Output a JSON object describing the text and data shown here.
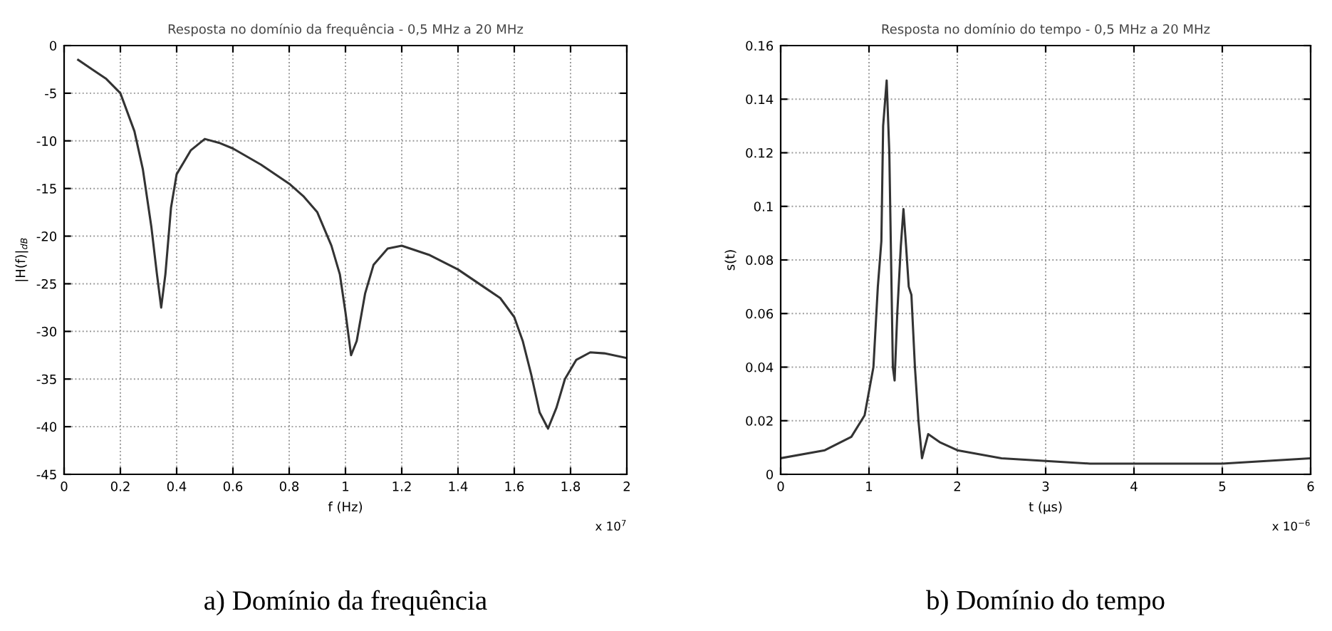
{
  "chart_data": [
    {
      "type": "line",
      "title": "Resposta no domínio da frequência - 0,5 MHz a 20 MHz",
      "xlabel": "f (Hz)",
      "ylabel": "|H(f)|$_{dB}$",
      "x": [
        0.05,
        0.1,
        0.15,
        0.2,
        0.25,
        0.28,
        0.31,
        0.33,
        0.345,
        0.36,
        0.38,
        0.4,
        0.45,
        0.5,
        0.55,
        0.6,
        0.7,
        0.8,
        0.85,
        0.9,
        0.95,
        0.98,
        1.0,
        1.02,
        1.04,
        1.07,
        1.1,
        1.15,
        1.2,
        1.3,
        1.4,
        1.5,
        1.55,
        1.6,
        1.63,
        1.66,
        1.69,
        1.72,
        1.75,
        1.78,
        1.82,
        1.87,
        1.92,
        2.0
      ],
      "series": [
        {
          "color": "#333333",
          "values": [
            -1.5,
            -2.5,
            -3.5,
            -5,
            -9,
            -13,
            -19,
            -24,
            -27.5,
            -24,
            -17,
            -13.5,
            -11,
            -9.8,
            -10.2,
            -10.8,
            -12.5,
            -14.5,
            -15.8,
            -17.5,
            -21,
            -24,
            -28,
            -32.5,
            -31,
            -26,
            -23,
            -21.3,
            -21,
            -22,
            -23.5,
            -25.5,
            -26.5,
            -28.5,
            -31,
            -34.5,
            -38.5,
            -40.2,
            -38,
            -35,
            -33,
            -32.2,
            -32.3,
            -32.8
          ]
        }
      ],
      "xlim": [
        0,
        2
      ],
      "xticks": [
        0,
        0.2,
        0.4,
        0.6,
        0.8,
        1,
        1.2,
        1.4,
        1.6,
        1.8,
        2
      ],
      "ylim": [
        -45,
        0
      ],
      "yticks": [
        -45,
        -40,
        -35,
        -30,
        -25,
        -20,
        -15,
        -10,
        -5,
        0
      ],
      "grid": true,
      "line_style": "solid",
      "annotations": [
        "x 10$^{7}$",
        "a) Domínio da frequência"
      ]
    },
    {
      "type": "line",
      "title": "Resposta no domínio do tempo - 0,5 MHz a 20 MHz",
      "xlabel": "t (µs)",
      "ylabel": "s(t)",
      "x": [
        0,
        0.5,
        0.8,
        0.95,
        1.05,
        1.1,
        1.14,
        1.16,
        1.2,
        1.23,
        1.27,
        1.29,
        1.32,
        1.36,
        1.39,
        1.42,
        1.45,
        1.48,
        1.52,
        1.56,
        1.6,
        1.63,
        1.67,
        1.8,
        2,
        2.5,
        3,
        3.5,
        4,
        5,
        5.5,
        6
      ],
      "series": [
        {
          "color": "#333333",
          "values": [
            0.006,
            0.009,
            0.014,
            0.022,
            0.04,
            0.07,
            0.087,
            0.13,
            0.147,
            0.12,
            0.04,
            0.035,
            0.06,
            0.085,
            0.099,
            0.085,
            0.07,
            0.067,
            0.04,
            0.02,
            0.006,
            0.01,
            0.015,
            0.012,
            0.009,
            0.006,
            0.005,
            0.004,
            0.004,
            0.004,
            0.005,
            0.006
          ]
        }
      ],
      "xlim": [
        0,
        6
      ],
      "xticks": [
        0,
        1,
        2,
        3,
        4,
        5,
        6
      ],
      "ylim": [
        0,
        0.16
      ],
      "yticks": [
        0,
        0.02,
        0.04,
        0.06,
        0.08,
        0.1,
        0.12,
        0.14,
        0.16
      ],
      "grid": true,
      "line_style": "solid",
      "annotations": [
        "x 10$^{−6}$",
        "b) Domínio do tempo"
      ]
    }
  ]
}
